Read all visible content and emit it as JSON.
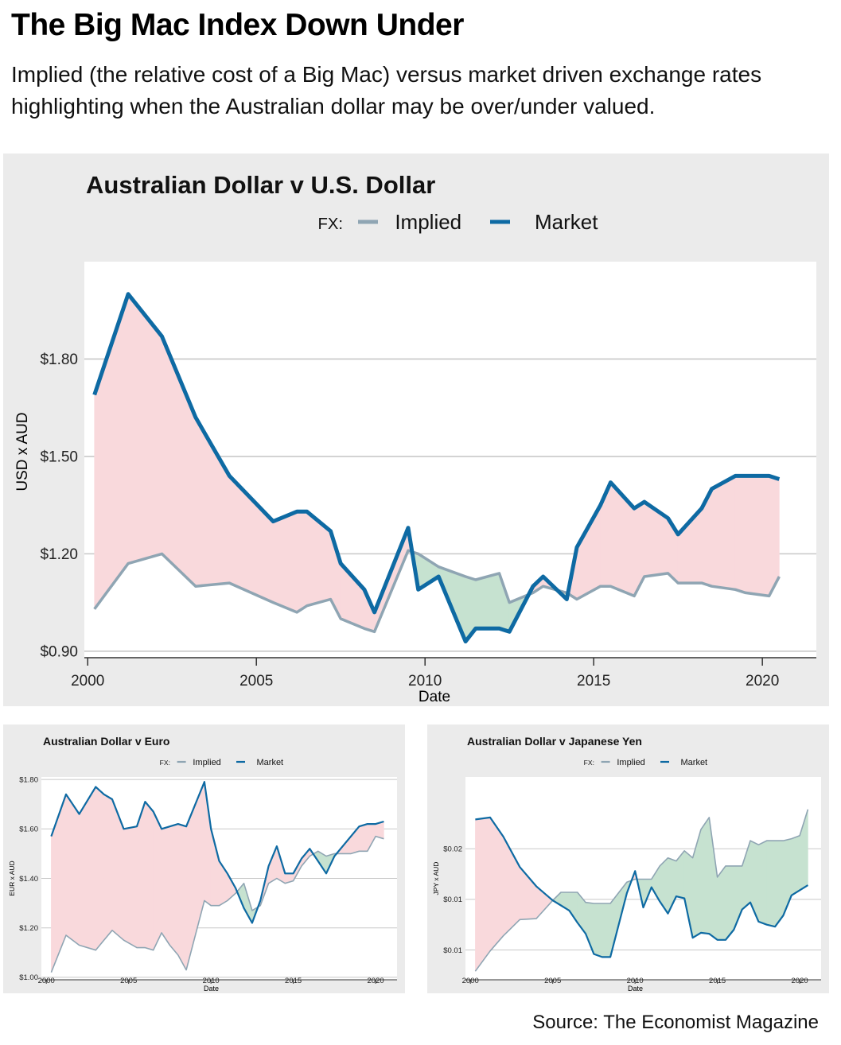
{
  "header": {
    "title": "The Big Mac Index Down Under",
    "subtitle": "Implied (the relative cost of a Big Mac) versus market driven exchange rates highlighting when the Australian dollar may be over/under valued."
  },
  "footer": {
    "source": "Source: The Economist Magazine"
  },
  "colors": {
    "implied": "#8fa5b3",
    "market": "#0e6aa3",
    "overvalued_fill": "#f9d9dc",
    "undervalued_fill": "#c6e2d0",
    "panel_bg": "#ebebeb",
    "gridline": "#c8c8c8"
  },
  "chart_data": [
    {
      "id": "usd",
      "type": "line",
      "title": "Australian Dollar v U.S. Dollar",
      "legend_title": "FX:",
      "legend_placement": "top",
      "xlabel": "Date",
      "ylabel": "USD x AUD",
      "xlim": [
        1999.9,
        2021.6
      ],
      "ylim": [
        0.88,
        2.1
      ],
      "xticks": [
        2000,
        2005,
        2010,
        2015,
        2020
      ],
      "yticks": [
        0.9,
        1.2,
        1.5,
        1.8
      ],
      "yticklabels": [
        "$0.90",
        "$1.20",
        "$1.50",
        "$1.80"
      ],
      "grid": "horizontal",
      "shading": "pink where Market above Implied, green where Market below Implied",
      "x": [
        2000.2,
        2001.2,
        2002.2,
        2003.2,
        2004.2,
        2005.5,
        2006.2,
        2006.5,
        2007.2,
        2007.5,
        2008.2,
        2008.5,
        2009.5,
        2009.8,
        2010.4,
        2011.2,
        2011.5,
        2012.2,
        2012.5,
        2013.2,
        2013.5,
        2014.2,
        2014.5,
        2015.2,
        2015.5,
        2016.2,
        2016.5,
        2017.2,
        2017.5,
        2018.2,
        2018.5,
        2019.2,
        2019.5,
        2020.2,
        2020.5
      ],
      "series": [
        {
          "name": "Implied",
          "values": [
            1.03,
            1.17,
            1.2,
            1.1,
            1.11,
            1.05,
            1.02,
            1.04,
            1.06,
            1.0,
            0.97,
            0.96,
            1.21,
            1.2,
            1.16,
            1.13,
            1.12,
            1.14,
            1.05,
            1.08,
            1.1,
            1.08,
            1.06,
            1.1,
            1.1,
            1.07,
            1.13,
            1.14,
            1.11,
            1.11,
            1.1,
            1.09,
            1.08,
            1.07,
            1.13
          ]
        },
        {
          "name": "Market",
          "values": [
            1.69,
            2.0,
            1.87,
            1.62,
            1.44,
            1.3,
            1.33,
            1.33,
            1.27,
            1.17,
            1.09,
            1.02,
            1.28,
            1.09,
            1.13,
            0.93,
            0.97,
            0.97,
            0.96,
            1.1,
            1.13,
            1.06,
            1.22,
            1.35,
            1.42,
            1.34,
            1.36,
            1.31,
            1.26,
            1.34,
            1.4,
            1.44,
            1.44,
            1.44,
            1.43
          ]
        }
      ]
    },
    {
      "id": "eur",
      "type": "line",
      "title": "Australian Dollar v Euro",
      "legend_title": "FX:",
      "legend_placement": "top",
      "xlabel": "Date",
      "ylabel": "EUR x AUD",
      "xlim": [
        1999.7,
        2021.3
      ],
      "ylim": [
        0.99,
        1.81
      ],
      "xticks": [
        2000,
        2005,
        2010,
        2015,
        2020
      ],
      "yticks": [
        1.0,
        1.2,
        1.4,
        1.6,
        1.8
      ],
      "yticklabels": [
        "$1.00",
        "$1.20",
        "$1.40",
        "$1.60",
        "$1.80"
      ],
      "grid": "horizontal",
      "shading": "pink where Market above Implied, green where Market below Implied",
      "x": [
        2000.3,
        2001.2,
        2002,
        2003,
        2003.5,
        2004,
        2004.7,
        2005.5,
        2006,
        2006.5,
        2007,
        2007.5,
        2008,
        2008.5,
        2009.6,
        2010,
        2010.5,
        2011,
        2011.5,
        2012,
        2012.5,
        2013,
        2013.5,
        2014,
        2014.5,
        2015,
        2015.5,
        2016,
        2016.5,
        2017,
        2017.5,
        2018,
        2018.5,
        2019,
        2019.5,
        2020,
        2020.5
      ],
      "series": [
        {
          "name": "Implied",
          "values": [
            1.02,
            1.17,
            1.13,
            1.11,
            1.15,
            1.19,
            1.15,
            1.12,
            1.12,
            1.11,
            1.18,
            1.13,
            1.09,
            1.03,
            1.31,
            1.29,
            1.29,
            1.31,
            1.34,
            1.38,
            1.27,
            1.29,
            1.38,
            1.4,
            1.38,
            1.39,
            1.45,
            1.49,
            1.51,
            1.49,
            1.5,
            1.5,
            1.5,
            1.51,
            1.51,
            1.57,
            1.56
          ]
        },
        {
          "name": "Market",
          "values": [
            1.57,
            1.74,
            1.66,
            1.77,
            1.74,
            1.72,
            1.6,
            1.61,
            1.71,
            1.67,
            1.6,
            1.61,
            1.62,
            1.61,
            1.79,
            1.6,
            1.47,
            1.42,
            1.36,
            1.28,
            1.22,
            1.31,
            1.45,
            1.53,
            1.42,
            1.42,
            1.48,
            1.52,
            1.47,
            1.42,
            1.49,
            1.53,
            1.57,
            1.61,
            1.62,
            1.62,
            1.63
          ]
        }
      ]
    },
    {
      "id": "jpy",
      "type": "line",
      "title": "Australian Dollar v Japanese Yen",
      "legend_title": "FX:",
      "legend_placement": "top",
      "xlabel": "Date",
      "ylabel": "JPY x AUD",
      "xlim": [
        1999.7,
        2021.3
      ],
      "ylim": [
        0.00455,
        0.0246
      ],
      "xticks": [
        2000,
        2005,
        2010,
        2015,
        2020
      ],
      "yticks": [
        0.0075,
        0.0125,
        0.0175
      ],
      "yticklabels": [
        "$0.01",
        "$0.01",
        "$0.02"
      ],
      "grid": "horizontal",
      "shading": "pink where Market above Implied, green where Market below Implied",
      "x": [
        2000.3,
        2001.2,
        2002,
        2003,
        2004,
        2005,
        2005.5,
        2006,
        2006.5,
        2007,
        2007.5,
        2008,
        2008.5,
        2009.5,
        2010,
        2010.5,
        2011,
        2011.5,
        2012,
        2012.5,
        2013,
        2013.5,
        2014,
        2014.5,
        2015,
        2015.5,
        2016,
        2016.5,
        2017,
        2017.5,
        2018,
        2018.5,
        2019,
        2019.5,
        2020,
        2020.5
      ],
      "series": [
        {
          "name": "Implied",
          "values": [
            0.0054,
            0.0074,
            0.0089,
            0.0105,
            0.0106,
            0.0124,
            0.0132,
            0.0132,
            0.0132,
            0.0122,
            0.0121,
            0.0121,
            0.0121,
            0.0142,
            0.0145,
            0.0145,
            0.0145,
            0.0158,
            0.0166,
            0.0163,
            0.0173,
            0.0166,
            0.0194,
            0.0206,
            0.0147,
            0.0158,
            0.0158,
            0.0158,
            0.0183,
            0.0179,
            0.0183,
            0.0183,
            0.0183,
            0.0185,
            0.0188,
            0.0214
          ]
        },
        {
          "name": "Market",
          "values": [
            0.0204,
            0.0206,
            0.0187,
            0.0157,
            0.0138,
            0.0124,
            0.0119,
            0.0114,
            0.0102,
            0.0091,
            0.0071,
            0.0068,
            0.0068,
            0.0131,
            0.0153,
            0.0117,
            0.0137,
            0.0123,
            0.0111,
            0.0128,
            0.0126,
            0.0087,
            0.0092,
            0.0091,
            0.0085,
            0.0085,
            0.0095,
            0.0115,
            0.0122,
            0.0103,
            0.01,
            0.0098,
            0.0109,
            0.0129,
            0.0134,
            0.0139
          ]
        }
      ]
    }
  ]
}
